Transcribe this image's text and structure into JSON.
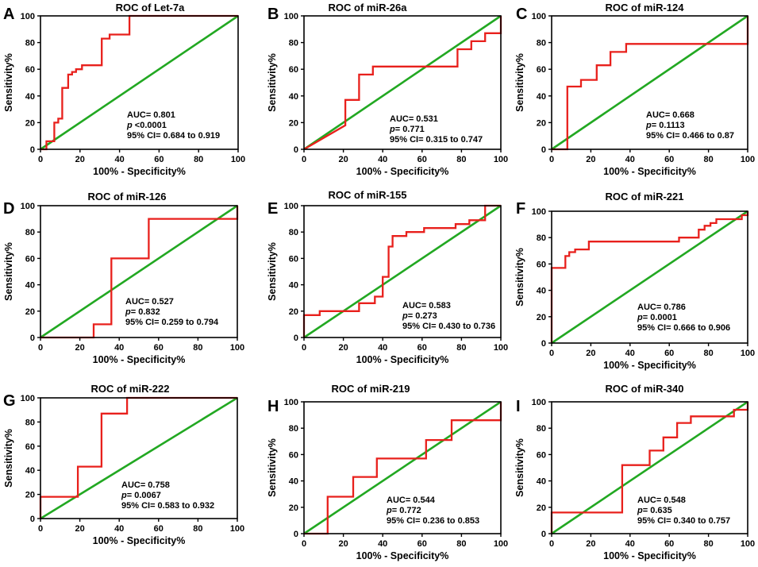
{
  "figure": {
    "colors": {
      "roc_curve": "#e8201c",
      "reference_line": "#22a822",
      "axis": "#000000"
    },
    "x_axis_label": "100% - Specificity%",
    "y_axis_label": "Sensitivity%",
    "stray_mark": "`"
  },
  "chart_data": [
    {
      "panel": "A",
      "type": "line",
      "title": "ROC of Let-7a",
      "xlabel": "100% - Specificity%",
      "ylabel": "Sensitivity%",
      "xlim": [
        0,
        100
      ],
      "ylim": [
        0,
        100
      ],
      "xticks": [
        0,
        20,
        40,
        60,
        80,
        100
      ],
      "yticks": [
        0,
        20,
        40,
        60,
        80,
        100
      ],
      "series": [
        {
          "name": "ROC curve",
          "x": [
            0,
            3,
            3,
            7,
            7,
            9,
            9,
            11,
            11,
            14,
            14,
            16,
            16,
            18,
            18,
            21,
            21,
            31,
            31,
            35,
            35,
            45,
            45,
            100
          ],
          "y": [
            0,
            0,
            6,
            6,
            20,
            20,
            23,
            23,
            46,
            46,
            56,
            56,
            58,
            58,
            60,
            60,
            63,
            63,
            83,
            83,
            86,
            86,
            100,
            100
          ]
        },
        {
          "name": "Reference",
          "x": [
            0,
            100
          ],
          "y": [
            0,
            100
          ]
        }
      ],
      "stats": {
        "auc": "AUC= 0.801",
        "p_prefix": "p",
        "p_value": " <0.0001",
        "ci": "95% CI= 0.684 to 0.919"
      }
    },
    {
      "panel": "B",
      "type": "line",
      "title": "ROC of miR-26a",
      "xlabel": "100% - Specificity%",
      "ylabel": "Sensitivity%",
      "xlim": [
        0,
        100
      ],
      "ylim": [
        0,
        100
      ],
      "xticks": [
        0,
        20,
        40,
        60,
        80,
        100
      ],
      "yticks": [
        0,
        20,
        40,
        60,
        80,
        100
      ],
      "series": [
        {
          "name": "ROC curve",
          "x": [
            0,
            21,
            21,
            28,
            28,
            35,
            35,
            78,
            78,
            85,
            85,
            92,
            92,
            100,
            100
          ],
          "y": [
            0,
            18,
            37,
            37,
            56,
            56,
            62,
            62,
            75,
            75,
            81,
            81,
            87,
            87,
            100
          ]
        },
        {
          "name": "Reference",
          "x": [
            0,
            100
          ],
          "y": [
            0,
            100
          ]
        }
      ],
      "stats": {
        "auc": "AUC= 0.531",
        "p_prefix": "p",
        "p_value": "= 0.771",
        "ci": "95% CI= 0.315 to 0.747"
      }
    },
    {
      "panel": "C",
      "type": "line",
      "title": "ROC of miR-124",
      "xlabel": "100% - Specificity%",
      "ylabel": "Sensitivity%",
      "xlim": [
        0,
        100
      ],
      "ylim": [
        0,
        100
      ],
      "xticks": [
        0,
        20,
        40,
        60,
        80,
        100
      ],
      "yticks": [
        0,
        20,
        40,
        60,
        80,
        100
      ],
      "series": [
        {
          "name": "ROC curve",
          "x": [
            0,
            8,
            8,
            15,
            15,
            23,
            23,
            30,
            30,
            38,
            38,
            100,
            100
          ],
          "y": [
            0,
            0,
            47,
            47,
            52,
            52,
            63,
            63,
            73,
            73,
            79,
            79,
            100
          ]
        },
        {
          "name": "Reference",
          "x": [
            0,
            100
          ],
          "y": [
            0,
            100
          ]
        }
      ],
      "stats": {
        "auc": "AUC= 0.668",
        "p_prefix": "p",
        "p_value": "= 0.1113",
        "ci": "95% CI= 0.466 to 0.87"
      }
    },
    {
      "panel": "D",
      "type": "line",
      "title": "ROC of miR-126",
      "xlabel": "100% - Specificity%",
      "ylabel": "Sensitivity%",
      "xlim": [
        0,
        100
      ],
      "ylim": [
        0,
        100
      ],
      "xticks": [
        0,
        20,
        40,
        60,
        80,
        100
      ],
      "yticks": [
        0,
        20,
        40,
        60,
        80,
        100
      ],
      "series": [
        {
          "name": "ROC curve",
          "x": [
            0,
            27,
            27,
            36,
            36,
            55,
            55,
            100,
            100
          ],
          "y": [
            0,
            0,
            10,
            10,
            60,
            60,
            90,
            90,
            100
          ]
        },
        {
          "name": "Reference",
          "x": [
            0,
            100
          ],
          "y": [
            0,
            100
          ]
        }
      ],
      "stats": {
        "auc": "AUC= 0.527",
        "p_prefix": "p",
        "p_value": "= 0.832",
        "ci": "95% CI= 0.259 to 0.794"
      }
    },
    {
      "panel": "E",
      "type": "line",
      "title": "ROC of miR-155",
      "xlabel": "100% - Specificity%",
      "ylabel": "Sensitivity%",
      "xlim": [
        0,
        100
      ],
      "ylim": [
        0,
        100
      ],
      "xticks": [
        0,
        20,
        40,
        60,
        80,
        100
      ],
      "yticks": [
        0,
        20,
        40,
        60,
        80,
        100
      ],
      "series": [
        {
          "name": "ROC curve",
          "x": [
            0,
            0,
            8,
            8,
            28,
            28,
            36,
            36,
            40,
            40,
            43,
            43,
            45,
            45,
            52,
            52,
            61,
            61,
            77,
            77,
            84,
            84,
            92,
            92,
            100
          ],
          "y": [
            0,
            17,
            17,
            20,
            20,
            26,
            26,
            31,
            31,
            46,
            46,
            69,
            69,
            77,
            77,
            80,
            80,
            83,
            83,
            86,
            86,
            89,
            89,
            100,
            100
          ]
        },
        {
          "name": "Reference",
          "x": [
            0,
            100
          ],
          "y": [
            0,
            100
          ]
        }
      ],
      "stats": {
        "auc": "AUC= 0.583",
        "p_prefix": "p",
        "p_value": "= 0.273",
        "ci": "95% CI= 0.430 to 0.736"
      }
    },
    {
      "panel": "F",
      "type": "line",
      "title": "ROC of miR-221",
      "xlabel": "100% - Specificity%",
      "ylabel": "Sensitivity%",
      "xlim": [
        0,
        100
      ],
      "ylim": [
        0,
        100
      ],
      "xticks": [
        0,
        20,
        40,
        60,
        80,
        100
      ],
      "yticks": [
        0,
        20,
        40,
        60,
        80,
        100
      ],
      "series": [
        {
          "name": "ROC curve",
          "x": [
            0,
            0,
            7,
            7,
            9,
            9,
            12,
            12,
            19,
            19,
            65,
            65,
            75,
            75,
            78,
            78,
            81,
            81,
            84,
            84,
            97,
            97,
            100,
            100
          ],
          "y": [
            0,
            57,
            57,
            66,
            66,
            69,
            69,
            71,
            71,
            77,
            77,
            80,
            80,
            86,
            86,
            89,
            89,
            91,
            91,
            94,
            94,
            97,
            97,
            100
          ]
        },
        {
          "name": "Reference",
          "x": [
            0,
            100
          ],
          "y": [
            0,
            100
          ]
        }
      ],
      "stats": {
        "auc": "AUC= 0.786",
        "p_prefix": "p",
        "p_value": "= 0.0001",
        "ci": "95% CI= 0.666 to 0.906"
      }
    },
    {
      "panel": "G",
      "type": "line",
      "title": "ROC of miR-222",
      "xlabel": "100% - Specificity%",
      "ylabel": "Sensitivity%",
      "xlim": [
        0,
        100
      ],
      "ylim": [
        0,
        100
      ],
      "xticks": [
        0,
        20,
        40,
        60,
        80,
        100
      ],
      "yticks": [
        0,
        20,
        40,
        60,
        80,
        100
      ],
      "series": [
        {
          "name": "ROC curve",
          "x": [
            0,
            0,
            19,
            19,
            31,
            31,
            44,
            44,
            100
          ],
          "y": [
            0,
            18,
            18,
            43,
            43,
            87,
            87,
            100,
            100
          ]
        },
        {
          "name": "Reference",
          "x": [
            0,
            100
          ],
          "y": [
            0,
            100
          ]
        }
      ],
      "stats": {
        "auc": "AUC= 0.758",
        "p_prefix": "p",
        "p_value": "= 0.0067",
        "ci": "95% CI= 0.583 to 0.932"
      }
    },
    {
      "panel": "H",
      "type": "line",
      "title": "ROC of miR-219",
      "xlabel": "100% - Specificity%",
      "ylabel": "Sensitivity%",
      "xlim": [
        0,
        100
      ],
      "ylim": [
        0,
        100
      ],
      "xticks": [
        0,
        20,
        40,
        60,
        80,
        100
      ],
      "yticks": [
        0,
        20,
        40,
        60,
        80,
        100
      ],
      "series": [
        {
          "name": "ROC curve",
          "x": [
            0,
            12,
            12,
            25,
            25,
            37,
            37,
            62,
            62,
            75,
            75,
            100,
            100
          ],
          "y": [
            0,
            0,
            28,
            28,
            43,
            43,
            57,
            57,
            71,
            71,
            86,
            86,
            100
          ]
        },
        {
          "name": "Reference",
          "x": [
            0,
            100
          ],
          "y": [
            0,
            100
          ]
        }
      ],
      "stats": {
        "auc": "AUC= 0.544",
        "p_prefix": "p",
        "p_value": "= 0.772",
        "ci": "95% CI= 0.236 to 0.853"
      }
    },
    {
      "panel": "I",
      "type": "line",
      "title": "ROC of miR-340",
      "xlabel": "100% - Specificity%",
      "ylabel": "Sensitivity%",
      "xlim": [
        0,
        100
      ],
      "ylim": [
        0,
        100
      ],
      "xticks": [
        0,
        20,
        40,
        60,
        80,
        100
      ],
      "yticks": [
        0,
        20,
        40,
        60,
        80,
        100
      ],
      "series": [
        {
          "name": "ROC curve",
          "x": [
            0,
            0,
            36,
            36,
            50,
            50,
            57,
            57,
            64,
            64,
            71,
            71,
            93,
            93,
            100,
            100
          ],
          "y": [
            0,
            16,
            16,
            52,
            52,
            63,
            63,
            73,
            73,
            84,
            84,
            89,
            89,
            94,
            94,
            100
          ]
        },
        {
          "name": "Reference",
          "x": [
            0,
            100
          ],
          "y": [
            0,
            100
          ]
        }
      ],
      "stats": {
        "auc": "AUC= 0.548",
        "p_prefix": "p",
        "p_value": "= 0.635",
        "ci": "95% CI= 0.340 to 0.757"
      }
    }
  ]
}
